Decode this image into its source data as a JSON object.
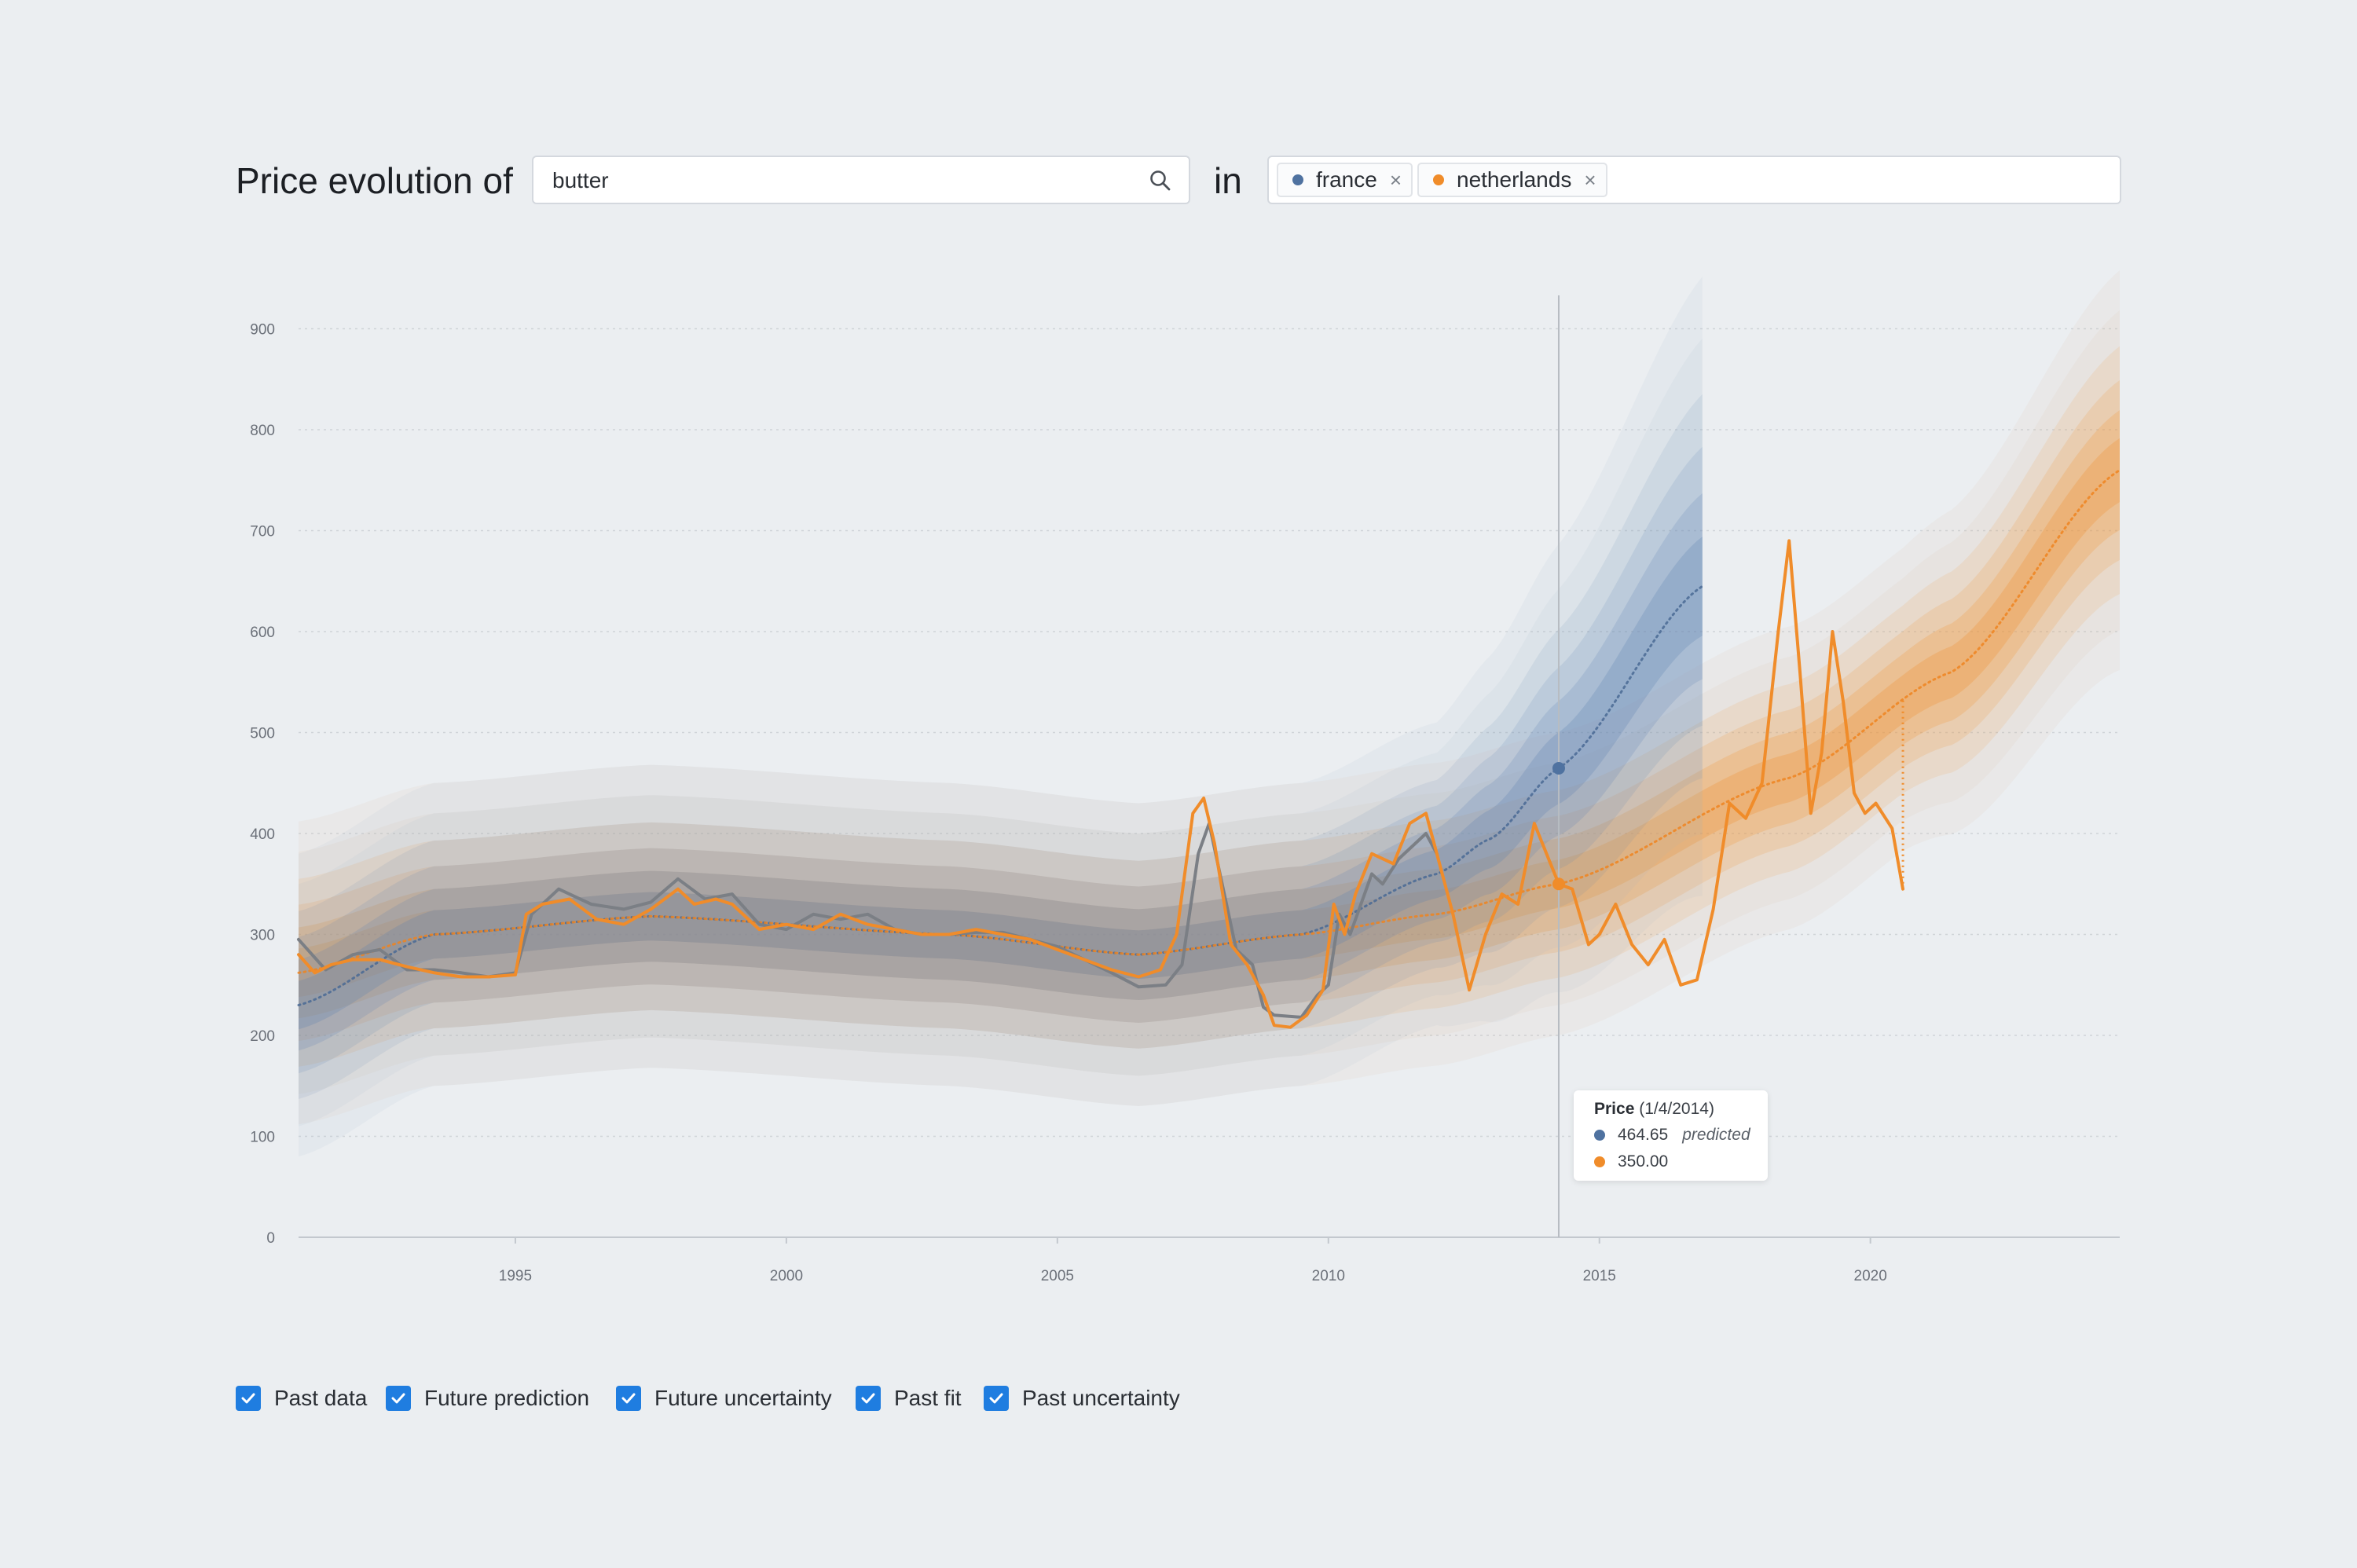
{
  "header": {
    "title": "Price evolution of",
    "search_value": "butter",
    "in_label": "in",
    "tags": [
      {
        "label": "france",
        "color": "#4f72a0"
      },
      {
        "label": "netherlands",
        "color": "#f08c2a"
      }
    ],
    "tag_close_glyph": "×"
  },
  "tooltip": {
    "title": "Price",
    "date": "(1/4/2014)",
    "rows": [
      {
        "value": "464.65",
        "note": "predicted",
        "color": "#4f72a0"
      },
      {
        "value": "350.00",
        "note": "",
        "color": "#f08c2a"
      }
    ]
  },
  "controls": [
    {
      "label": "Past data",
      "checked": true
    },
    {
      "label": "Future prediction",
      "checked": true
    },
    {
      "label": "Future uncertainty",
      "checked": true
    },
    {
      "label": "Past fit",
      "checked": true
    },
    {
      "label": "Past uncertainty",
      "checked": true
    }
  ],
  "chart_data": {
    "type": "line",
    "title": "",
    "xlabel": "",
    "ylabel": "",
    "xlim": [
      1991.0,
      2024.6
    ],
    "ylim": [
      0,
      930
    ],
    "x_ticks": [
      1995,
      2000,
      2005,
      2010,
      2015,
      2020
    ],
    "y_ticks": [
      0,
      100,
      200,
      300,
      400,
      500,
      600,
      700,
      800,
      900
    ],
    "grid": "horizontal-dotted",
    "hover_x": 2014.25,
    "series": [
      {
        "name": "france",
        "color": "#4f72a0",
        "past_data": [
          [
            1991.0,
            295
          ],
          [
            1991.5,
            265
          ],
          [
            1992.0,
            280
          ],
          [
            1992.5,
            285
          ],
          [
            1993.0,
            265
          ],
          [
            1993.5,
            265
          ],
          [
            1994.0,
            262
          ],
          [
            1994.5,
            258
          ],
          [
            1995.0,
            262
          ],
          [
            1995.3,
            320
          ],
          [
            1995.8,
            345
          ],
          [
            1996.4,
            330
          ],
          [
            1997.0,
            325
          ],
          [
            1997.5,
            332
          ],
          [
            1998.0,
            355
          ],
          [
            1998.5,
            335
          ],
          [
            1999.0,
            340
          ],
          [
            1999.5,
            310
          ],
          [
            2000.0,
            305
          ],
          [
            2000.5,
            320
          ],
          [
            2001.0,
            315
          ],
          [
            2001.5,
            320
          ],
          [
            2002.0,
            305
          ],
          [
            2002.5,
            300
          ],
          [
            2003.0,
            300
          ],
          [
            2003.5,
            302
          ],
          [
            2004.0,
            302
          ],
          [
            2004.5,
            295
          ],
          [
            2005.0,
            288
          ],
          [
            2005.5,
            275
          ],
          [
            2006.0,
            262
          ],
          [
            2006.5,
            248
          ],
          [
            2007.0,
            250
          ],
          [
            2007.3,
            270
          ],
          [
            2007.6,
            380
          ],
          [
            2007.8,
            410
          ],
          [
            2008.0,
            360
          ],
          [
            2008.3,
            285
          ],
          [
            2008.6,
            270
          ],
          [
            2008.8,
            228
          ],
          [
            2009.0,
            220
          ],
          [
            2009.5,
            218
          ],
          [
            2009.8,
            240
          ],
          [
            2010.0,
            250
          ],
          [
            2010.2,
            320
          ],
          [
            2010.4,
            300
          ],
          [
            2010.6,
            330
          ],
          [
            2010.8,
            360
          ],
          [
            2011.0,
            350
          ],
          [
            2011.3,
            375
          ],
          [
            2011.6,
            390
          ],
          [
            2011.8,
            400
          ],
          [
            2012.0,
            380
          ]
        ],
        "fit_start": 230,
        "predicted_x_end": 2016.9,
        "predicted_y_end": 645
      },
      {
        "name": "netherlands",
        "color": "#f08c2a",
        "past_data": [
          [
            1991.0,
            280
          ],
          [
            1991.3,
            262
          ],
          [
            1991.6,
            270
          ],
          [
            1992.0,
            275
          ],
          [
            1992.5,
            275
          ],
          [
            1993.0,
            268
          ],
          [
            1993.5,
            262
          ],
          [
            1994.0,
            258
          ],
          [
            1994.5,
            258
          ],
          [
            1995.0,
            260
          ],
          [
            1995.2,
            320
          ],
          [
            1995.5,
            330
          ],
          [
            1996.0,
            335
          ],
          [
            1996.5,
            315
          ],
          [
            1997.0,
            310
          ],
          [
            1997.5,
            325
          ],
          [
            1998.0,
            345
          ],
          [
            1998.3,
            330
          ],
          [
            1998.7,
            335
          ],
          [
            1999.0,
            330
          ],
          [
            1999.5,
            305
          ],
          [
            2000.0,
            310
          ],
          [
            2000.5,
            305
          ],
          [
            2001.0,
            320
          ],
          [
            2001.5,
            310
          ],
          [
            2002.0,
            305
          ],
          [
            2002.5,
            300
          ],
          [
            2003.0,
            300
          ],
          [
            2003.5,
            305
          ],
          [
            2004.0,
            300
          ],
          [
            2004.5,
            295
          ],
          [
            2005.0,
            285
          ],
          [
            2005.5,
            275
          ],
          [
            2006.0,
            265
          ],
          [
            2006.5,
            258
          ],
          [
            2006.9,
            265
          ],
          [
            2007.2,
            300
          ],
          [
            2007.5,
            420
          ],
          [
            2007.7,
            435
          ],
          [
            2007.9,
            390
          ],
          [
            2008.2,
            290
          ],
          [
            2008.5,
            270
          ],
          [
            2008.8,
            240
          ],
          [
            2009.0,
            210
          ],
          [
            2009.3,
            208
          ],
          [
            2009.6,
            220
          ],
          [
            2009.9,
            245
          ],
          [
            2010.1,
            330
          ],
          [
            2010.3,
            300
          ],
          [
            2010.5,
            340
          ],
          [
            2010.8,
            380
          ],
          [
            2011.2,
            370
          ],
          [
            2011.5,
            410
          ],
          [
            2011.8,
            420
          ],
          [
            2012.0,
            380
          ],
          [
            2012.3,
            320
          ],
          [
            2012.6,
            245
          ],
          [
            2012.9,
            300
          ],
          [
            2013.2,
            340
          ],
          [
            2013.5,
            330
          ],
          [
            2013.8,
            410
          ],
          [
            2014.1,
            370
          ],
          [
            2014.25,
            350
          ],
          [
            2014.5,
            345
          ],
          [
            2014.8,
            290
          ],
          [
            2015.0,
            300
          ],
          [
            2015.3,
            330
          ],
          [
            2015.6,
            290
          ],
          [
            2015.9,
            270
          ],
          [
            2016.2,
            295
          ],
          [
            2016.5,
            250
          ],
          [
            2016.8,
            255
          ],
          [
            2017.1,
            325
          ],
          [
            2017.4,
            430
          ],
          [
            2017.7,
            415
          ],
          [
            2018.0,
            450
          ],
          [
            2018.3,
            600
          ],
          [
            2018.5,
            690
          ],
          [
            2018.7,
            560
          ],
          [
            2018.9,
            420
          ],
          [
            2019.1,
            480
          ],
          [
            2019.3,
            600
          ],
          [
            2019.5,
            530
          ],
          [
            2019.7,
            440
          ],
          [
            2019.9,
            420
          ],
          [
            2020.1,
            430
          ],
          [
            2020.4,
            405
          ],
          [
            2020.6,
            345
          ]
        ],
        "fit_start": 262,
        "predicted_x_end": 2024.6,
        "predicted_y_end": 760
      }
    ],
    "hover_values": {
      "france": 464.65,
      "netherlands": 350.0
    }
  }
}
